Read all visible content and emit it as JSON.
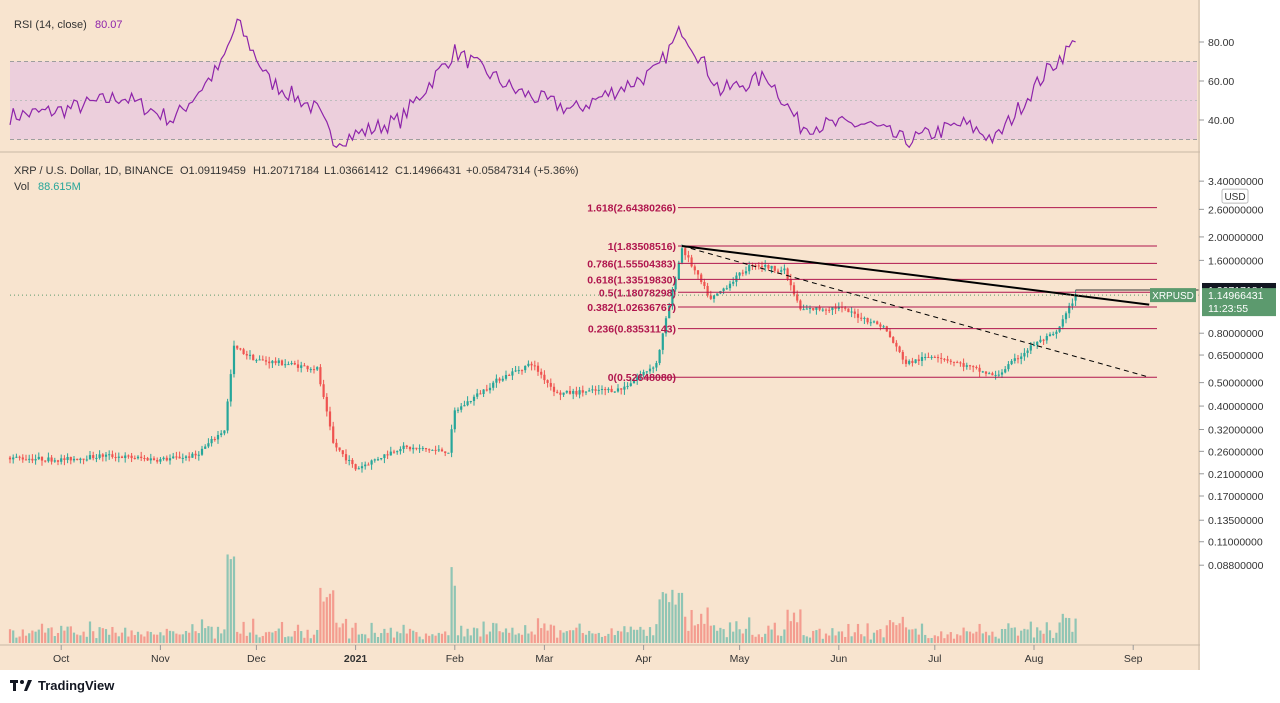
{
  "colors": {
    "background": "#f8e4cf",
    "up_candle": "#26a69a",
    "down_candle": "#ef5350",
    "rsi_line": "#8e24aa",
    "rsi_band": "#e1bee7",
    "fib_line": "#b0164e",
    "trendline": "#000000",
    "price_tag": "#5c9a6e"
  },
  "rsi_panel": {
    "title": "RSI (14, close)",
    "value": "80.07",
    "axis_labels": [
      "80.00",
      "60.00",
      "40.00"
    ]
  },
  "main_panel": {
    "symbol_line": "XRP / U.S. Dollar, 1D, BINANCE",
    "open": "O1.09119459",
    "high": "H1.20717184",
    "low": "L1.03661412",
    "close": "C1.14966431",
    "change": "+0.05847314 (+5.36%)",
    "vol_label": "Vol",
    "vol_value": "88.615M",
    "currency": "USD",
    "price_axis": [
      "3.40000000",
      "2.60000000",
      "2.00000000",
      "1.60000000",
      "0.80000000",
      "0.65000000",
      "0.50000000",
      "0.40000000",
      "0.32000000",
      "0.26000000",
      "0.21000000",
      "0.17000000",
      "0.13500000",
      "0.11000000",
      "0.08800000"
    ],
    "high_tag": "1.20717184",
    "last_tag_symbol": "XRPUSD",
    "last_tag_price": "1.14966431",
    "last_tag_countdown": "11:23:55",
    "fib_levels": [
      {
        "label": "1.618(2.64380266)",
        "price": 2.6438
      },
      {
        "label": "1(1.83508516)",
        "price": 1.8351
      },
      {
        "label": "0.786(1.55504383)",
        "price": 1.555
      },
      {
        "label": "0.618(1.33519830)",
        "price": 1.3352
      },
      {
        "label": "0.5(1.18078298)",
        "price": 1.1808
      },
      {
        "label": "0.382(1.02636767)",
        "price": 1.0264
      },
      {
        "label": "0.236(0.83531143)",
        "price": 0.8353
      },
      {
        "label": "0(0.52648080)",
        "price": 0.5265
      }
    ]
  },
  "time_axis": [
    "Oct",
    "Nov",
    "Dec",
    "2021",
    "Feb",
    "Mar",
    "Apr",
    "May",
    "Jun",
    "Jul",
    "Aug",
    "Sep"
  ],
  "chart_data": {
    "type": "candlestick",
    "symbol": "XRPUSD",
    "interval": "1D",
    "y_scale": "log",
    "ylim": [
      0.088,
      3.4
    ],
    "price_path": [
      {
        "date": "2020-09-15",
        "close": 0.245
      },
      {
        "date": "2020-10-01",
        "close": 0.24
      },
      {
        "date": "2020-10-15",
        "close": 0.25
      },
      {
        "date": "2020-11-01",
        "close": 0.24
      },
      {
        "date": "2020-11-12",
        "close": 0.25
      },
      {
        "date": "2020-11-21",
        "close": 0.32
      },
      {
        "date": "2020-11-24",
        "close": 0.7
      },
      {
        "date": "2020-12-01",
        "close": 0.62
      },
      {
        "date": "2020-12-10",
        "close": 0.6
      },
      {
        "date": "2020-12-20",
        "close": 0.57
      },
      {
        "date": "2020-12-25",
        "close": 0.28
      },
      {
        "date": "2021-01-01",
        "close": 0.22
      },
      {
        "date": "2021-01-15",
        "close": 0.27
      },
      {
        "date": "2021-01-30",
        "close": 0.26
      },
      {
        "date": "2021-02-01",
        "close": 0.38
      },
      {
        "date": "2021-02-15",
        "close": 0.52
      },
      {
        "date": "2021-02-25",
        "close": 0.6
      },
      {
        "date": "2021-03-05",
        "close": 0.45
      },
      {
        "date": "2021-03-25",
        "close": 0.47
      },
      {
        "date": "2021-04-05",
        "close": 0.6
      },
      {
        "date": "2021-04-13",
        "close": 1.8
      },
      {
        "date": "2021-04-22",
        "close": 1.1
      },
      {
        "date": "2021-05-05",
        "close": 1.55
      },
      {
        "date": "2021-05-15",
        "close": 1.45
      },
      {
        "date": "2021-05-20",
        "close": 1.0
      },
      {
        "date": "2021-06-01",
        "close": 1.02
      },
      {
        "date": "2021-06-15",
        "close": 0.85
      },
      {
        "date": "2021-06-22",
        "close": 0.6
      },
      {
        "date": "2021-07-01",
        "close": 0.65
      },
      {
        "date": "2021-07-20",
        "close": 0.53
      },
      {
        "date": "2021-08-01",
        "close": 0.72
      },
      {
        "date": "2021-08-08",
        "close": 0.8
      },
      {
        "date": "2021-08-14",
        "close": 1.1497
      }
    ],
    "last_bar": {
      "open": 1.09119459,
      "high": 1.20717184,
      "low": 1.03661412,
      "close": 1.14966431,
      "volume": "88.615M"
    },
    "rsi": {
      "period": 14,
      "last": 80.07,
      "band": [
        30,
        70
      ],
      "ylim": [
        25,
        95
      ],
      "path": [
        {
          "date": "2020-09-15",
          "value": 42
        },
        {
          "date": "2020-10-01",
          "value": 45
        },
        {
          "date": "2020-10-20",
          "value": 52
        },
        {
          "date": "2020-11-05",
          "value": 40
        },
        {
          "date": "2020-11-20",
          "value": 68
        },
        {
          "date": "2020-11-25",
          "value": 90
        },
        {
          "date": "2020-12-05",
          "value": 60
        },
        {
          "date": "2020-12-20",
          "value": 45
        },
        {
          "date": "2020-12-25",
          "value": 29
        },
        {
          "date": "2021-01-15",
          "value": 40
        },
        {
          "date": "2021-02-01",
          "value": 75
        },
        {
          "date": "2021-02-20",
          "value": 55
        },
        {
          "date": "2021-03-10",
          "value": 45
        },
        {
          "date": "2021-04-05",
          "value": 65
        },
        {
          "date": "2021-04-13",
          "value": 87
        },
        {
          "date": "2021-04-25",
          "value": 55
        },
        {
          "date": "2021-05-10",
          "value": 62
        },
        {
          "date": "2021-05-20",
          "value": 37
        },
        {
          "date": "2021-06-10",
          "value": 38
        },
        {
          "date": "2021-06-22",
          "value": 29
        },
        {
          "date": "2021-07-10",
          "value": 38
        },
        {
          "date": "2021-07-20",
          "value": 30
        },
        {
          "date": "2021-08-05",
          "value": 65
        },
        {
          "date": "2021-08-14",
          "value": 80.07
        }
      ]
    },
    "trendlines": [
      {
        "style": "solid",
        "from": {
          "date": "2021-04-13",
          "price": 1.835
        },
        "to": {
          "date": "2021-09-06",
          "price": 1.05
        }
      },
      {
        "style": "dashed",
        "from": {
          "date": "2021-04-13",
          "price": 1.835
        },
        "to": {
          "date": "2021-09-06",
          "price": 0.5265
        }
      }
    ]
  },
  "footer": {
    "brand": "TradingView"
  }
}
